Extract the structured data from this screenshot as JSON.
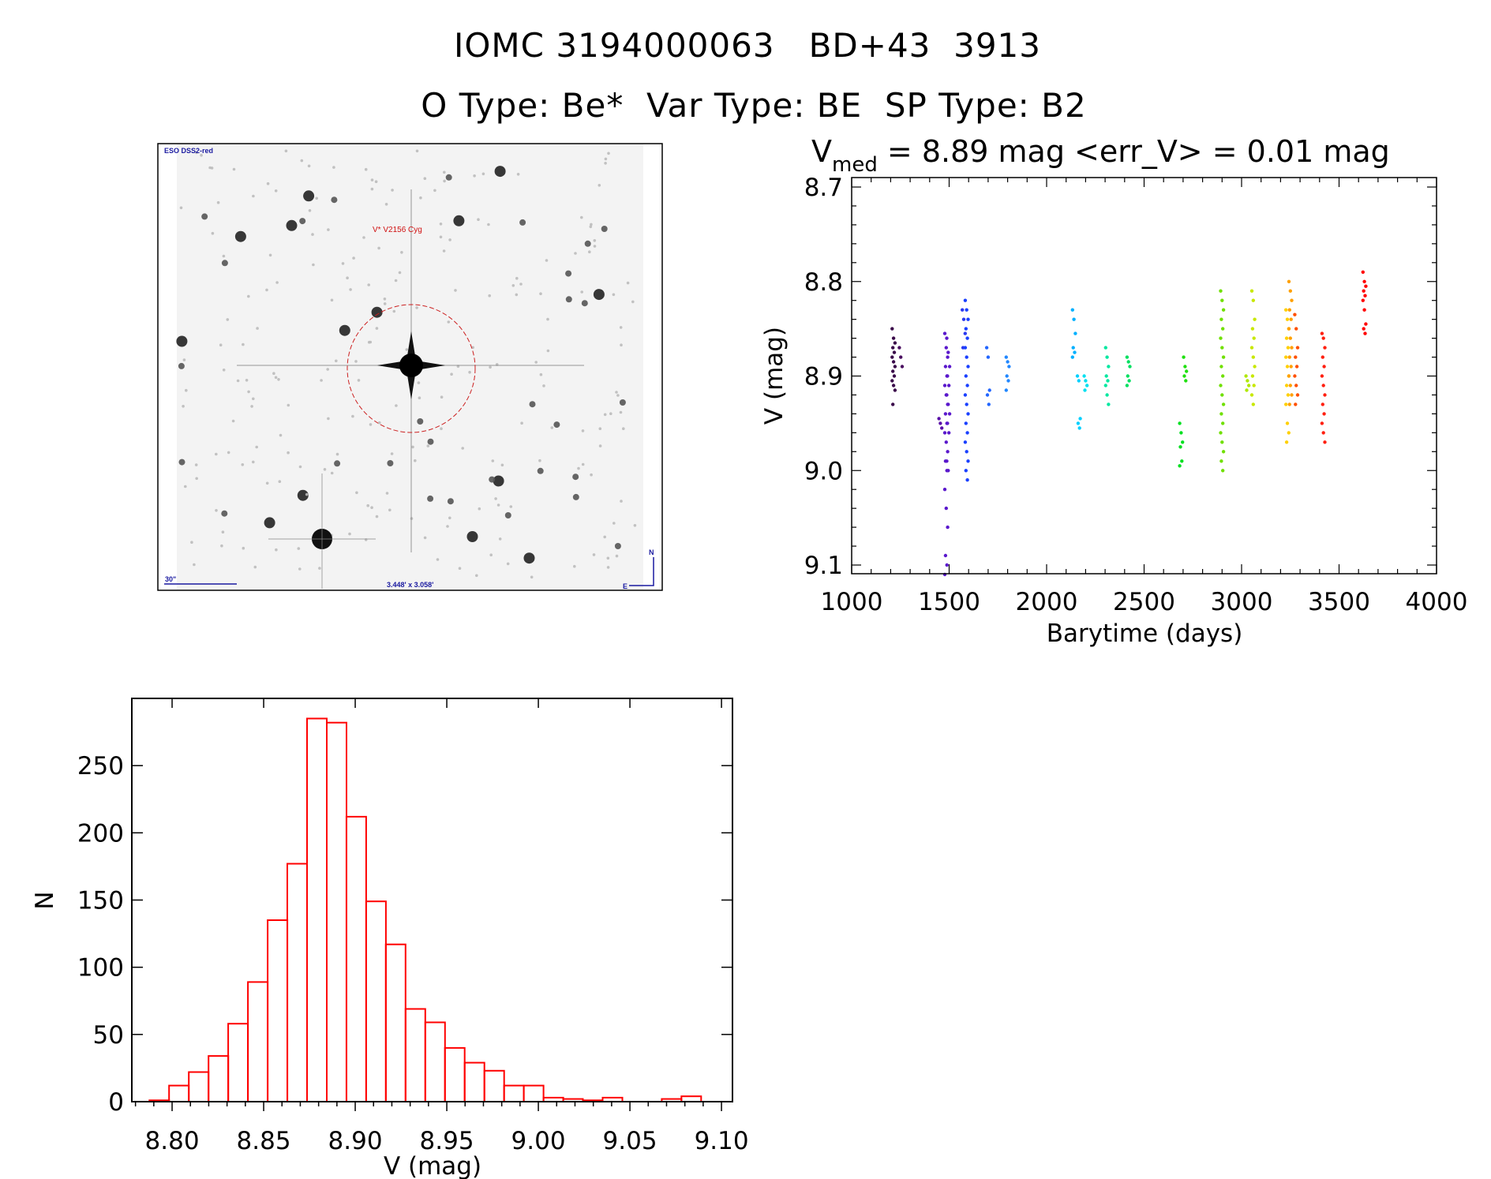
{
  "header": {
    "title_line1": "IOMC 3194000063   BD+43  3913",
    "title_line2": "O Type: Be*  Var Type: BE  SP Type: B2"
  },
  "finder_chart": {
    "survey_label": "ESO DSS2-red",
    "target_label": "V* V2156 Cyg",
    "scale_label": "30\"",
    "fov_label": "3.448' x 3.058'",
    "north_label": "N",
    "east_label": "E",
    "circle_color": "#cc2020",
    "label_color": "#1a1aa0"
  },
  "chart_data": [
    {
      "type": "scatter",
      "title_main": "V",
      "title_sub": "med",
      "title_rest": " = 8.89 mag <err_V> = 0.01 mag",
      "xlabel": "Barytime (days)",
      "ylabel": "V (mag)",
      "xlim": [
        1000,
        4000
      ],
      "ylim": [
        8.7,
        9.1
      ],
      "y_inverted": true,
      "xticks": [
        "1000",
        "1500",
        "2000",
        "2500",
        "3000",
        "3500",
        "4000"
      ],
      "yticks": [
        "8.7",
        "8.8",
        "8.9",
        "9.0",
        "9.1"
      ],
      "grid": false,
      "series": [
        {
          "x": 1215,
          "color": "#3a0a4a",
          "y": [
            8.85,
            8.86,
            8.865,
            8.87,
            8.875,
            8.88,
            8.885,
            8.89,
            8.895,
            8.9,
            8.905,
            8.91,
            8.915,
            8.93
          ]
        },
        {
          "x": 1252,
          "color": "#4a0e60",
          "y": [
            8.87,
            8.88,
            8.89
          ]
        },
        {
          "x": 1455,
          "color": "#5a10a8",
          "y": [
            8.945,
            8.95,
            8.955
          ]
        },
        {
          "x": 1485,
          "color": "#5a18cc",
          "y": [
            8.855,
            8.87,
            8.88,
            8.89,
            8.9,
            8.91,
            8.92,
            8.93,
            8.94,
            8.95,
            8.96,
            8.97,
            8.98,
            8.99,
            9.0,
            9.02,
            9.04,
            9.06,
            9.09,
            9.1,
            9.11
          ]
        },
        {
          "x": 1495,
          "color": "#5a18cc",
          "y": [
            8.86,
            8.875,
            8.89,
            8.9,
            8.91,
            8.92,
            8.93,
            8.94,
            8.95,
            8.96,
            8.99,
            9.0
          ]
        },
        {
          "x": 1575,
          "color": "#2a38f0",
          "y": [
            8.83,
            8.84,
            8.855,
            8.87
          ]
        },
        {
          "x": 1590,
          "color": "#1a40ff",
          "y": [
            8.82,
            8.83,
            8.84,
            8.85,
            8.86,
            8.87,
            8.88,
            8.89,
            8.9,
            8.91,
            8.92,
            8.93,
            8.94,
            8.95,
            8.96,
            8.97,
            8.98,
            8.99,
            9.0,
            9.01
          ]
        },
        {
          "x": 1700,
          "color": "#2266ff",
          "y": [
            8.87,
            8.88,
            8.915,
            8.92,
            8.93
          ]
        },
        {
          "x": 1800,
          "color": "#2288ff",
          "y": [
            8.88,
            8.885,
            8.89,
            8.9,
            8.905,
            8.915
          ]
        },
        {
          "x": 2140,
          "color": "#00b0ff",
          "y": [
            8.83,
            8.84,
            8.855,
            8.87,
            8.875,
            8.88
          ]
        },
        {
          "x": 2165,
          "color": "#00d0ff",
          "y": [
            8.9,
            8.905,
            8.945,
            8.95,
            8.955
          ]
        },
        {
          "x": 2200,
          "color": "#00e0f0",
          "y": [
            8.9,
            8.905,
            8.91,
            8.915
          ]
        },
        {
          "x": 2310,
          "color": "#00e8a0",
          "y": [
            8.87,
            8.88,
            8.89,
            8.9,
            8.905,
            8.91,
            8.92,
            8.93
          ]
        },
        {
          "x": 2420,
          "color": "#00e060",
          "y": [
            8.88,
            8.885,
            8.89,
            8.9,
            8.905,
            8.91
          ]
        },
        {
          "x": 2690,
          "color": "#00e020",
          "y": [
            8.95,
            8.96,
            8.97,
            8.975,
            8.99,
            8.995
          ]
        },
        {
          "x": 2710,
          "color": "#20e010",
          "y": [
            8.88,
            8.89,
            8.895,
            8.9,
            8.905
          ]
        },
        {
          "x": 2900,
          "color": "#70e000",
          "y": [
            8.81,
            8.82,
            8.83,
            8.84,
            8.85,
            8.86,
            8.87,
            8.88,
            8.89,
            8.9,
            8.91,
            8.92,
            8.93,
            8.94,
            8.95,
            8.96,
            8.97,
            8.98,
            8.99,
            9.0
          ]
        },
        {
          "x": 3030,
          "color": "#b0e800",
          "y": [
            8.9,
            8.905,
            8.91,
            8.915
          ]
        },
        {
          "x": 3060,
          "color": "#c8e800",
          "y": [
            8.81,
            8.82,
            8.84,
            8.85,
            8.86,
            8.87,
            8.88,
            8.89,
            8.9,
            8.91,
            8.92,
            8.93
          ]
        },
        {
          "x": 3235,
          "color": "#ffd000",
          "y": [
            8.83,
            8.84,
            8.85,
            8.86,
            8.87,
            8.88,
            8.89,
            8.9,
            8.91,
            8.92,
            8.93,
            8.95,
            8.96,
            8.97
          ]
        },
        {
          "x": 3250,
          "color": "#ffa000",
          "y": [
            8.8,
            8.81,
            8.82,
            8.83,
            8.84,
            8.85,
            8.86,
            8.87,
            8.88,
            8.89,
            8.9,
            8.91,
            8.92,
            8.93
          ]
        },
        {
          "x": 3280,
          "color": "#ff5000",
          "y": [
            8.835,
            8.85,
            8.87,
            8.88,
            8.89,
            8.9,
            8.91,
            8.92,
            8.93
          ]
        },
        {
          "x": 3420,
          "color": "#ff2010",
          "y": [
            8.855,
            8.86,
            8.87,
            8.88,
            8.89,
            8.9,
            8.91,
            8.92,
            8.93,
            8.94,
            8.95,
            8.96,
            8.97
          ]
        },
        {
          "x": 3630,
          "color": "#ff0000",
          "y": [
            8.79,
            8.8,
            8.805,
            8.81,
            8.815,
            8.82,
            8.83,
            8.845,
            8.85,
            8.855
          ]
        }
      ]
    },
    {
      "type": "bar",
      "subtype": "histogram",
      "xlabel": "V (mag)",
      "ylabel": "N",
      "xlim": [
        8.778,
        9.106
      ],
      "ylim": [
        0,
        300
      ],
      "xticks": [
        "8.80",
        "8.85",
        "8.90",
        "8.95",
        "9.00",
        "9.05",
        "9.10"
      ],
      "yticks": [
        "0",
        "50",
        "100",
        "150",
        "200",
        "250"
      ],
      "bin_start": 8.7876,
      "bin_width": 0.01076,
      "values": [
        1,
        12,
        22,
        34,
        58,
        89,
        135,
        177,
        285,
        282,
        212,
        149,
        117,
        69,
        59,
        40,
        29,
        23,
        12,
        12,
        3,
        2,
        1,
        3,
        0,
        0,
        2,
        4
      ],
      "color": "#ff0000",
      "grid": false
    }
  ]
}
